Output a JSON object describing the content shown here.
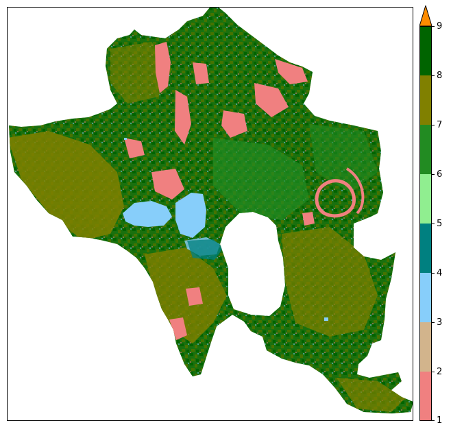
{
  "colorbar": {
    "tick_labels": [
      "1",
      "2",
      "3",
      "4",
      "5",
      "6",
      "7",
      "8",
      "9"
    ],
    "class_colors": [
      "#f08080",
      "#d2b48c",
      "#87cefa",
      "#008080",
      "#90ee90",
      "#228b22",
      "#808000",
      "#006400"
    ],
    "extend_max_color": "#ff8c00"
  },
  "map": {
    "class_colors": {
      "class_1_2": "#f08080",
      "class_3_4": "#87cefa",
      "class_4_5": "#008080",
      "class_6_7": "#228b22",
      "class_7_8": "#808000",
      "class_8_9": "#006400"
    }
  }
}
